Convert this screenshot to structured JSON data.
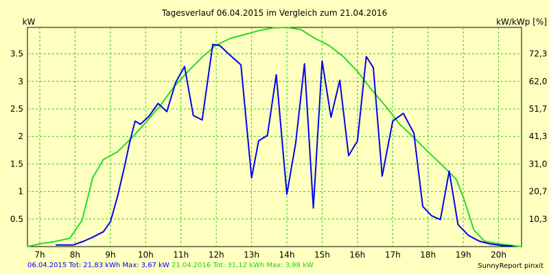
{
  "chart_data": {
    "type": "line",
    "title": "Tagesverlauf 06.04.2015 im Vergleich zum 21.04.2016",
    "ylabel": "kW",
    "ylabel_right": "kW/kWp [%]",
    "xlim": [
      6.65,
      20.65
    ],
    "ylim": [
      0,
      3.98
    ],
    "grid": true,
    "x_ticks": [
      "7h",
      "8h",
      "9h",
      "10h",
      "11h",
      "12h",
      "13h",
      "14h",
      "15h",
      "16h",
      "17h",
      "18h",
      "19h",
      "20h"
    ],
    "y_ticks": [
      "0.5",
      "1",
      "1.5",
      "2",
      "2.5",
      "3",
      "3.5"
    ],
    "y_tick_values": [
      0.5,
      1,
      1.5,
      2,
      2.5,
      3,
      3.5
    ],
    "y2_ticks": [
      "10,3",
      "20,7",
      "31,0",
      "41,3",
      "51,7",
      "62,0",
      "72,3"
    ],
    "series": [
      {
        "name": "06.04.2015",
        "color": "#0000EE",
        "x": [
          7.45,
          7.95,
          8.25,
          8.5,
          8.8,
          9.0,
          9.2,
          9.4,
          9.55,
          9.7,
          9.85,
          10.1,
          10.35,
          10.6,
          10.85,
          11.1,
          11.35,
          11.6,
          11.9,
          12.1,
          12.35,
          12.7,
          13.0,
          13.2,
          13.45,
          13.7,
          14.0,
          14.25,
          14.5,
          14.75,
          15.0,
          15.25,
          15.5,
          15.75,
          16.0,
          16.25,
          16.45,
          16.7,
          17.0,
          17.3,
          17.6,
          17.85,
          18.1,
          18.35,
          18.6,
          18.85,
          19.15,
          19.45,
          19.75,
          20.1,
          20.4
        ],
        "y": [
          0.03,
          0.03,
          0.1,
          0.17,
          0.27,
          0.45,
          0.9,
          1.45,
          1.9,
          2.28,
          2.22,
          2.37,
          2.6,
          2.45,
          2.98,
          3.27,
          2.38,
          2.3,
          3.67,
          3.65,
          3.5,
          3.3,
          1.25,
          1.92,
          2.02,
          3.12,
          0.95,
          1.88,
          3.32,
          0.7,
          3.37,
          2.35,
          3.02,
          1.65,
          1.92,
          3.45,
          3.25,
          1.28,
          2.28,
          2.42,
          2.06,
          0.73,
          0.56,
          0.49,
          1.37,
          0.4,
          0.2,
          0.1,
          0.05,
          0.02,
          0.01
        ]
      },
      {
        "name": "21.04.2016",
        "color": "#22DD22",
        "x": [
          6.65,
          7.0,
          7.4,
          7.85,
          8.2,
          8.5,
          8.8,
          9.2,
          9.6,
          10.0,
          10.4,
          10.8,
          11.2,
          11.6,
          12.0,
          12.4,
          12.8,
          13.2,
          13.6,
          14.0,
          14.4,
          14.8,
          15.2,
          15.6,
          16.0,
          16.4,
          16.8,
          17.2,
          17.6,
          18.0,
          18.4,
          18.8,
          19.0,
          19.3,
          19.6,
          20.0,
          20.4,
          20.65
        ],
        "y": [
          0,
          0.05,
          0.09,
          0.15,
          0.48,
          1.25,
          1.58,
          1.72,
          1.97,
          2.25,
          2.55,
          2.9,
          3.18,
          3.44,
          3.66,
          3.78,
          3.85,
          3.92,
          3.97,
          3.98,
          3.94,
          3.78,
          3.65,
          3.45,
          3.18,
          2.85,
          2.55,
          2.22,
          1.98,
          1.72,
          1.48,
          1.22,
          0.9,
          0.3,
          0.1,
          0.05,
          0.02,
          0
        ]
      }
    ]
  },
  "footer": {
    "series1": "06.04.2015 Tot: 21,83 kWh Max: 3,67 kW",
    "series2": "21.04.2016 Tot: 31,12 kWh Max: 3,98 kW",
    "credit": "SunnyReport pinxit"
  }
}
